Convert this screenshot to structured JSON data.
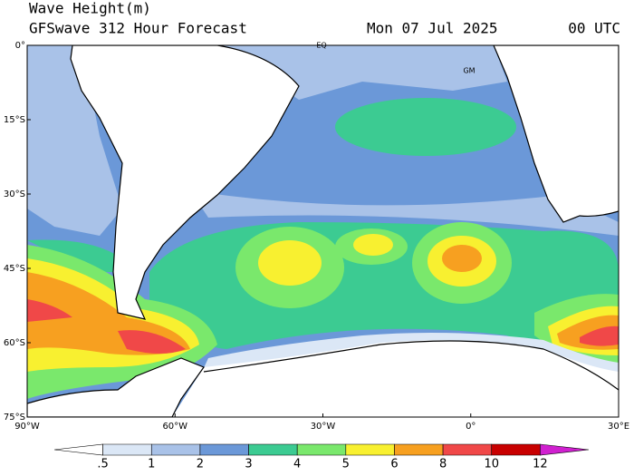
{
  "header": {
    "title": "Wave Height(m)",
    "subtitle": "GFSwave 312 Hour Forecast",
    "date": "Mon 07 Jul 2025",
    "time": "00 UTC"
  },
  "map": {
    "annotations": [
      "EQ",
      "GM"
    ],
    "lat_labels": [
      "0°",
      "15°S",
      "30°S",
      "45°S",
      "60°S",
      "75°S"
    ],
    "lon_labels": [
      "90°W",
      "60°W",
      "30°W",
      "0°",
      "30°E"
    ]
  },
  "colorbar": {
    "labels": [
      ".5",
      "1",
      "2",
      "3",
      "4",
      "5",
      "6",
      "8",
      "10",
      "12"
    ],
    "colors": [
      "#ffffff",
      "#dbe7f6",
      "#a9c2e8",
      "#6b98d8",
      "#3ccb92",
      "#7ae86c",
      "#f8f030",
      "#f7a020",
      "#f04848",
      "#c80000",
      "#d020d0"
    ]
  }
}
